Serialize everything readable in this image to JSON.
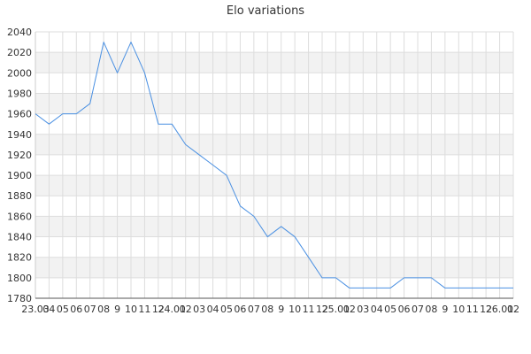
{
  "chart_data": {
    "type": "line",
    "title": "Elo variations",
    "xlabel": "",
    "ylabel": "",
    "ylim": [
      1780,
      2040
    ],
    "y_ticks": [
      1780,
      1800,
      1820,
      1840,
      1860,
      1880,
      1900,
      1920,
      1940,
      1960,
      1980,
      2000,
      2020,
      2040
    ],
    "x_tick_labels": [
      "23.03",
      "04",
      "05",
      "06",
      "07",
      "08",
      "9",
      "10",
      "11",
      "12",
      "24.01",
      "02",
      "03",
      "04",
      "05",
      "06",
      "07",
      "08",
      "9",
      "10",
      "11",
      "12",
      "25.01",
      "02",
      "03",
      "04",
      "05",
      "06",
      "07",
      "08",
      "9",
      "10",
      "11",
      "12",
      "26.01",
      "02"
    ],
    "grid": true,
    "band_color": "#f2f2f2",
    "grid_color": "#dddddd",
    "line_color": "#4a90e2",
    "series": [
      {
        "values": [
          1960,
          1950,
          1960,
          1960,
          1970,
          2030,
          2000,
          2030,
          2000,
          1950,
          1950,
          1930,
          1920,
          1910,
          1900,
          1870,
          1860,
          1840,
          1850,
          1840,
          1820,
          1800,
          1800,
          1790,
          1790,
          1790,
          1790,
          1800,
          1800,
          1800,
          1790,
          1790,
          1790,
          1790,
          1790,
          1790
        ]
      }
    ]
  }
}
